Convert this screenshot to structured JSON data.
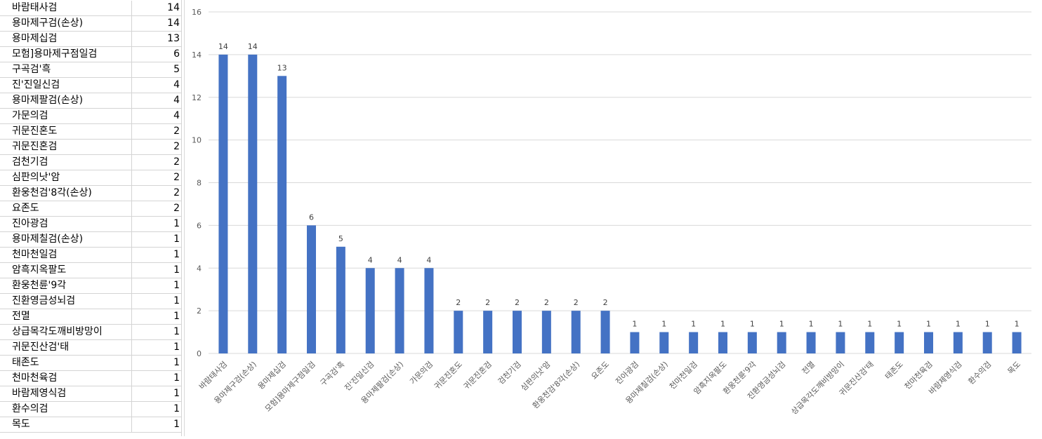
{
  "sheet": {
    "rows": [
      {
        "name": "바람태사검",
        "value": 14
      },
      {
        "name": "용마제구검(손상)",
        "value": 14
      },
      {
        "name": "용마제십검",
        "value": 13
      },
      {
        "name": "모험]용마제구점일검",
        "value": 6
      },
      {
        "name": "구곡검'흑",
        "value": 5
      },
      {
        "name": "진'진일신검",
        "value": 4
      },
      {
        "name": "용마제팔검(손상)",
        "value": 4
      },
      {
        "name": "가문의검",
        "value": 4
      },
      {
        "name": "귀문진혼도",
        "value": 2
      },
      {
        "name": "귀문진혼검",
        "value": 2
      },
      {
        "name": "검천기검",
        "value": 2
      },
      {
        "name": "심판의낫'암",
        "value": 2
      },
      {
        "name": "환웅천검'8각(손상)",
        "value": 2
      },
      {
        "name": "요존도",
        "value": 2
      },
      {
        "name": "진아광검",
        "value": 1
      },
      {
        "name": "용마제칠검(손상)",
        "value": 1
      },
      {
        "name": "천마천일검",
        "value": 1
      },
      {
        "name": "암흑지옥팔도",
        "value": 1
      },
      {
        "name": "환웅천륜'9각",
        "value": 1
      },
      {
        "name": "진환영금성뇌검",
        "value": 1
      },
      {
        "name": "전멸",
        "value": 1
      },
      {
        "name": "상급목각도깨비방망이",
        "value": 1
      },
      {
        "name": "귀문진산검'태",
        "value": 1
      },
      {
        "name": "태존도",
        "value": 1
      },
      {
        "name": "천마천육검",
        "value": 1
      },
      {
        "name": "바람제영식검",
        "value": 1
      },
      {
        "name": "환수의검",
        "value": 1
      },
      {
        "name": "목도",
        "value": 1
      }
    ]
  },
  "chart_data": {
    "type": "bar",
    "categories": [
      "바람태사검",
      "용마제구검(손상)",
      "용마제십검",
      "모험]용마제구점일검",
      "구곡검'흑",
      "진'진일신검",
      "용마제팔검(손상)",
      "가문의검",
      "귀문진혼도",
      "귀문진혼검",
      "검천기검",
      "심판의낫'암",
      "환웅천검'8각(손상)",
      "요존도",
      "진아광검",
      "용마제칠검(손상)",
      "천마천일검",
      "암흑지옥팔도",
      "환웅천륜'9각",
      "진환영금성뇌검",
      "전멸",
      "상급목각도깨비방망이",
      "귀문진산검'태",
      "태존도",
      "천마천육검",
      "바람제영식검",
      "환수의검",
      "목도"
    ],
    "values": [
      14,
      14,
      13,
      6,
      5,
      4,
      4,
      4,
      2,
      2,
      2,
      2,
      2,
      2,
      1,
      1,
      1,
      1,
      1,
      1,
      1,
      1,
      1,
      1,
      1,
      1,
      1,
      1
    ],
    "ylim": [
      0,
      16
    ],
    "yticks": [
      0,
      2,
      4,
      6,
      8,
      10,
      12,
      14,
      16
    ],
    "grid": true,
    "data_labels": true,
    "bar_color": "#4472c4",
    "grid_color": "#d9d9d9"
  }
}
